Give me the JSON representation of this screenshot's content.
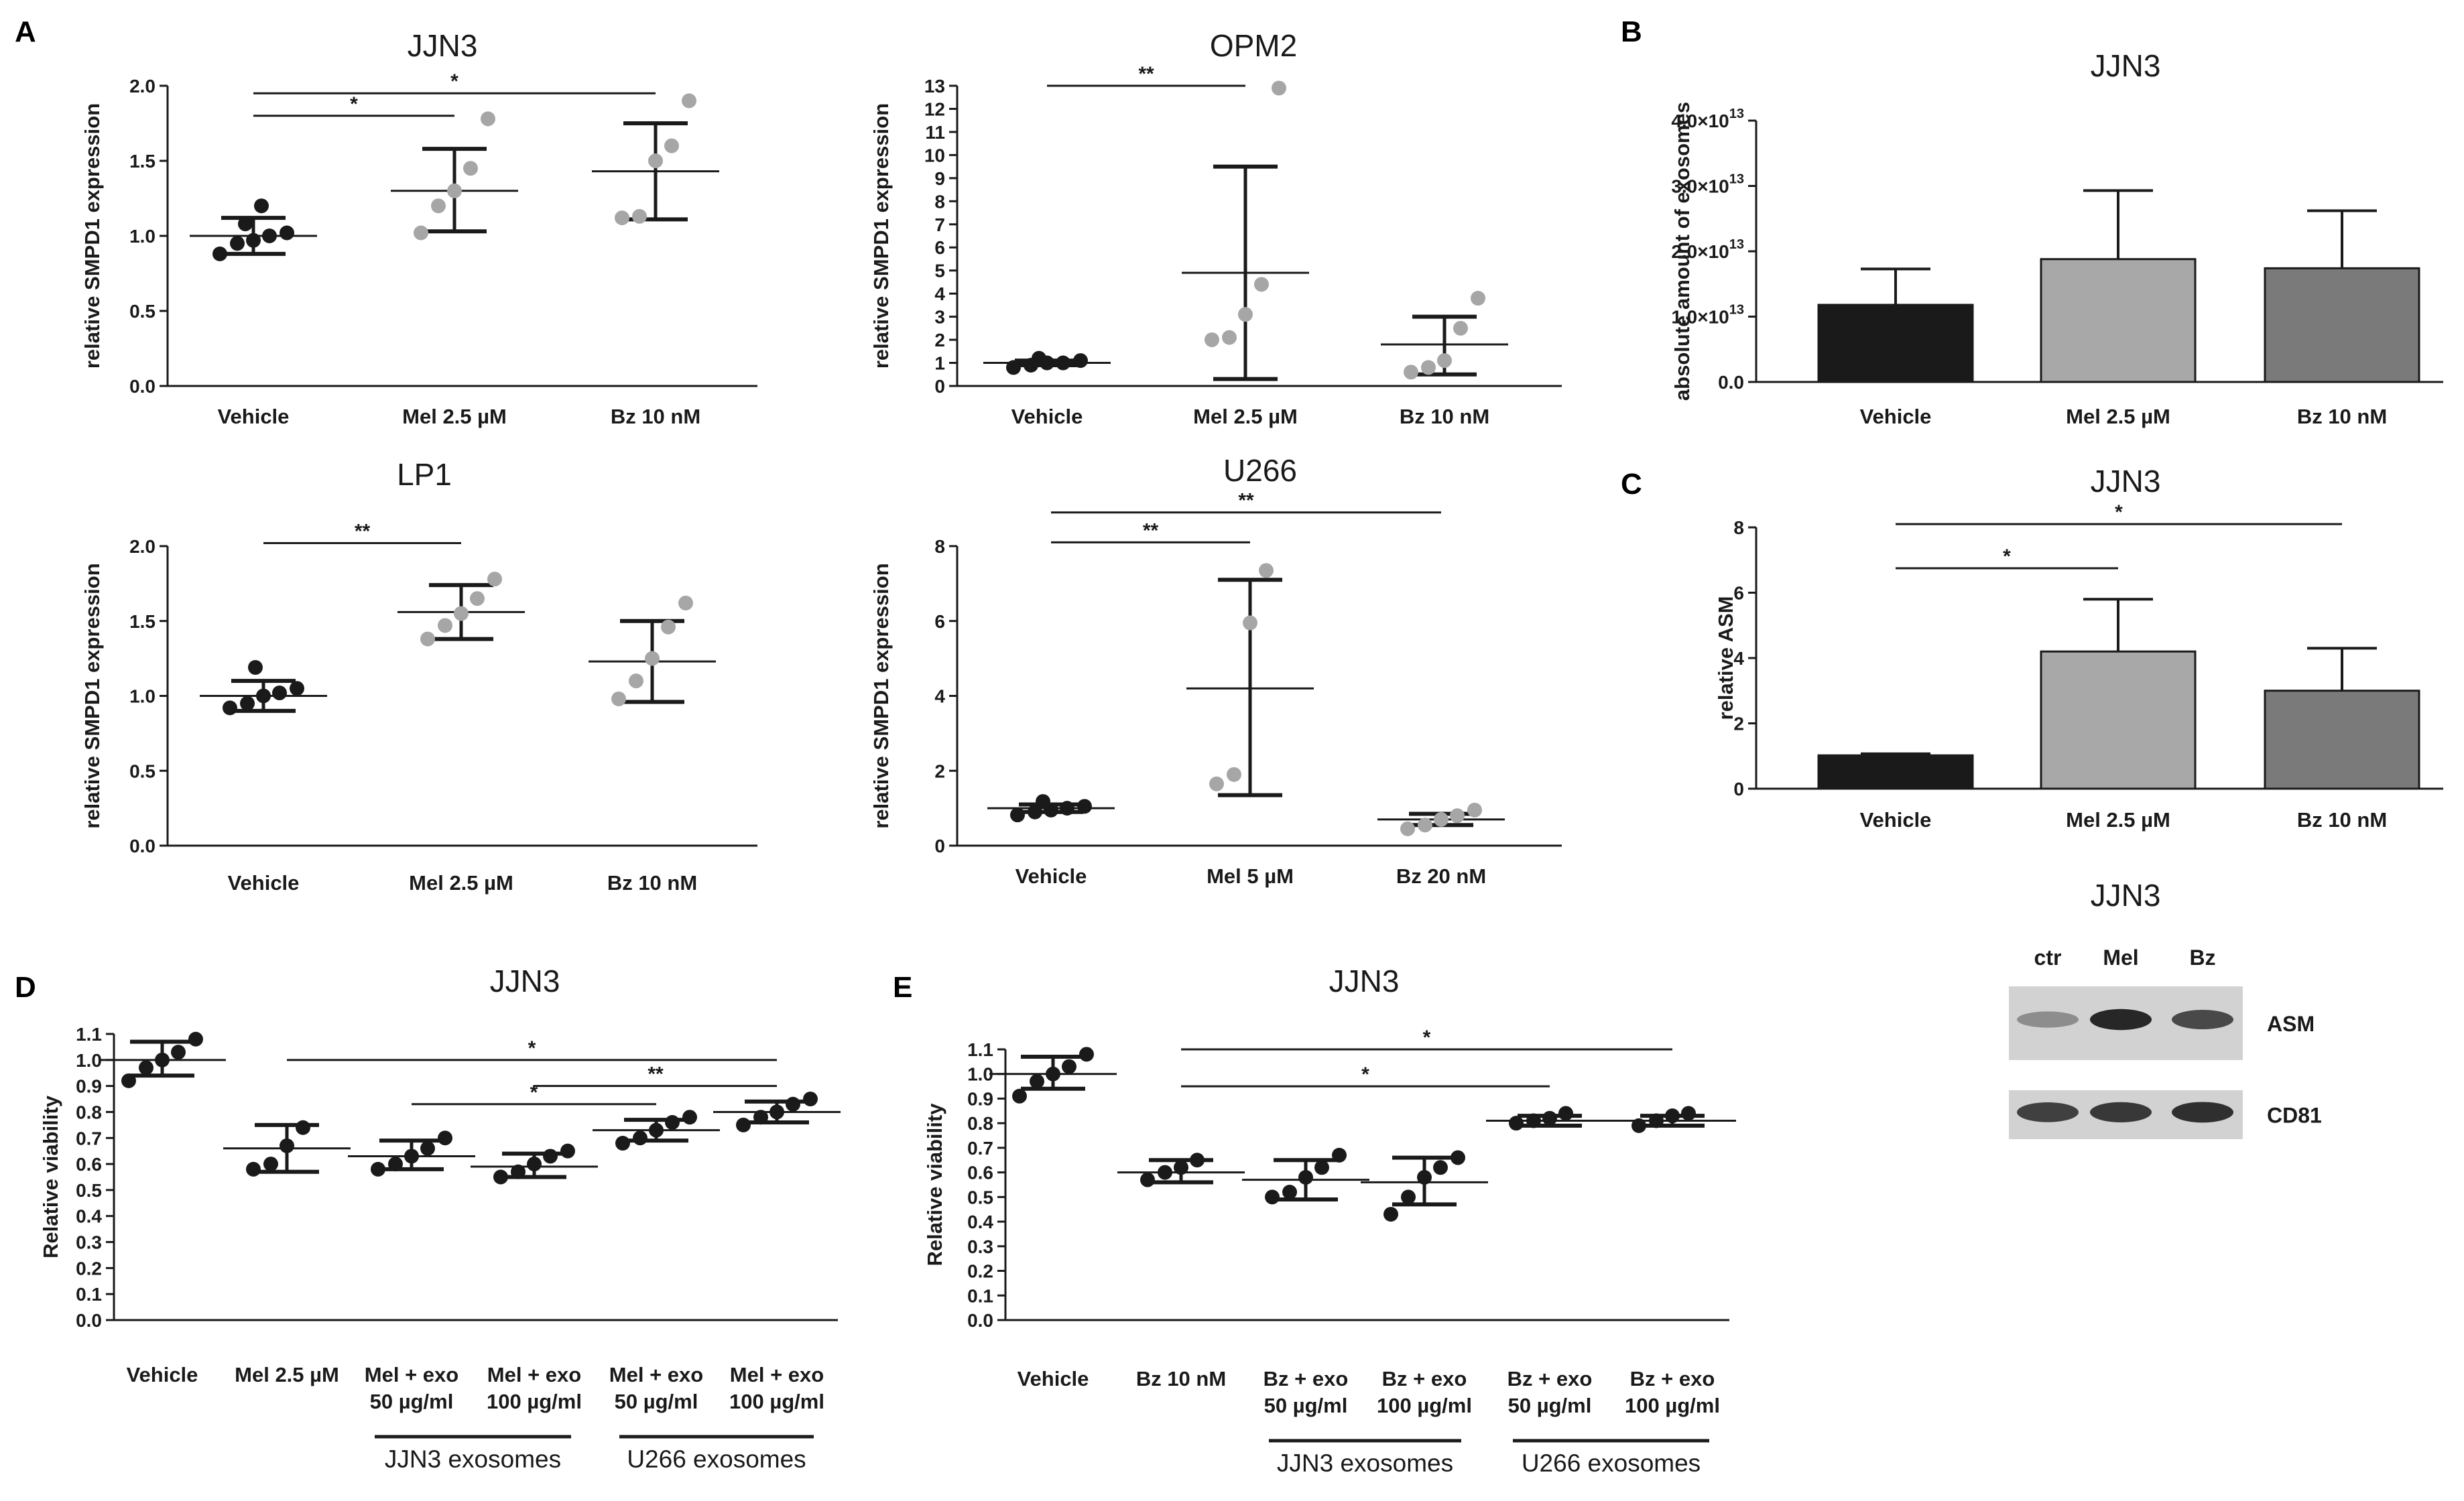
{
  "panel_letters": {
    "A": "A",
    "B": "B",
    "C": "C",
    "D": "D",
    "E": "E"
  },
  "colors": {
    "black": "#1a1a1a",
    "grey": "#a6a6a6",
    "bar_black": "#1a1a1a",
    "bar_light": "#a8a8a8",
    "bar_mid": "#7a7a7a",
    "axis": "#1a1a1a"
  },
  "chart_data": [
    {
      "id": "a_jjn3",
      "type": "scatter",
      "title": "JJN3",
      "ylabel": "relative SMPD1 expression",
      "ylim": [
        0,
        2.0
      ],
      "yticks": [
        "0.0",
        "0.5",
        "1.0",
        "1.5",
        "2.0"
      ],
      "ytick_values": [
        0,
        0.5,
        1.0,
        1.5,
        2.0
      ],
      "categories": [
        "Vehicle",
        "Mel 2.5 µM",
        "Bz 10 nM"
      ],
      "series": [
        {
          "name": "Vehicle",
          "color": "black",
          "points": [
            0.88,
            0.95,
            0.97,
            1.0,
            1.02,
            1.08,
            1.2
          ],
          "mean": 1.0,
          "sd_low": 0.88,
          "sd_high": 1.12
        },
        {
          "name": "Mel 2.5 µM",
          "color": "grey",
          "points": [
            1.02,
            1.2,
            1.3,
            1.45,
            1.78
          ],
          "mean": 1.3,
          "sd_low": 1.03,
          "sd_high": 1.58
        },
        {
          "name": "Bz 10 nM",
          "color": "grey",
          "points": [
            1.12,
            1.13,
            1.5,
            1.6,
            1.9
          ],
          "mean": 1.43,
          "sd_low": 1.11,
          "sd_high": 1.75
        }
      ],
      "significance": [
        {
          "from": 0,
          "to": 1,
          "label": "*",
          "y": 1.8
        },
        {
          "from": 0,
          "to": 2,
          "label": "*",
          "y": 1.95
        }
      ]
    },
    {
      "id": "a_opm2",
      "type": "scatter",
      "title": "OPM2",
      "ylabel": "relative SMPD1 expression",
      "ylim": [
        0,
        13
      ],
      "yticks": [
        "0",
        "1",
        "2",
        "3",
        "4",
        "5",
        "6",
        "7",
        "8",
        "9",
        "10",
        "11",
        "12",
        "13"
      ],
      "ytick_values": [
        0,
        1,
        2,
        3,
        4,
        5,
        6,
        7,
        8,
        9,
        10,
        11,
        12,
        13
      ],
      "categories": [
        "Vehicle",
        "Mel 2.5 µM",
        "Bz 10 nM"
      ],
      "series": [
        {
          "name": "Vehicle",
          "color": "black",
          "points": [
            0.8,
            0.9,
            1.0,
            1.0,
            1.1,
            1.2
          ],
          "mean": 1.0,
          "sd_low": 0.9,
          "sd_high": 1.1
        },
        {
          "name": "Mel 2.5 µM",
          "color": "grey",
          "points": [
            2.0,
            2.1,
            3.1,
            4.4,
            12.9
          ],
          "mean": 4.9,
          "sd_low": 0.3,
          "sd_high": 9.5
        },
        {
          "name": "Bz 10 nM",
          "color": "grey",
          "points": [
            0.6,
            0.8,
            1.1,
            2.5,
            3.8
          ],
          "mean": 1.8,
          "sd_low": 0.5,
          "sd_high": 3.0
        }
      ],
      "significance": [
        {
          "from": 0,
          "to": 1,
          "label": "**",
          "y": 13.0
        }
      ]
    },
    {
      "id": "a_lp1",
      "type": "scatter",
      "title": "LP1",
      "ylabel": "relative SMPD1 expression",
      "ylim": [
        0,
        2.0
      ],
      "yticks": [
        "0.0",
        "0.5",
        "1.0",
        "1.5",
        "2.0"
      ],
      "ytick_values": [
        0,
        0.5,
        1.0,
        1.5,
        2.0
      ],
      "categories": [
        "Vehicle",
        "Mel 2.5 µM",
        "Bz 10 nM"
      ],
      "series": [
        {
          "name": "Vehicle",
          "color": "black",
          "points": [
            0.92,
            0.95,
            1.0,
            1.02,
            1.05,
            1.19
          ],
          "mean": 1.0,
          "sd_low": 0.9,
          "sd_high": 1.1
        },
        {
          "name": "Mel 2.5 µM",
          "color": "grey",
          "points": [
            1.38,
            1.47,
            1.55,
            1.65,
            1.78
          ],
          "mean": 1.56,
          "sd_low": 1.38,
          "sd_high": 1.74
        },
        {
          "name": "Bz 10 nM",
          "color": "grey",
          "points": [
            0.98,
            1.1,
            1.25,
            1.46,
            1.62
          ],
          "mean": 1.23,
          "sd_low": 0.96,
          "sd_high": 1.5
        }
      ],
      "significance": [
        {
          "from": 0,
          "to": 1,
          "label": "**",
          "y": 2.02
        }
      ]
    },
    {
      "id": "a_u266",
      "type": "scatter",
      "title": "U266",
      "ylabel": "relative SMPD1 expression",
      "ylim": [
        0,
        8
      ],
      "yticks": [
        "0",
        "2",
        "4",
        "6",
        "8"
      ],
      "ytick_values": [
        0,
        2,
        4,
        6,
        8
      ],
      "categories": [
        "Vehicle",
        "Mel 5 µM",
        "Bz 20 nM"
      ],
      "series": [
        {
          "name": "Vehicle",
          "color": "black",
          "points": [
            0.82,
            0.9,
            0.95,
            1.0,
            1.05,
            1.18
          ],
          "mean": 1.0,
          "sd_low": 0.9,
          "sd_high": 1.1
        },
        {
          "name": "Mel 5 µM",
          "color": "grey",
          "points": [
            1.65,
            1.9,
            5.95,
            7.35
          ],
          "mean": 4.2,
          "sd_low": 1.35,
          "sd_high": 7.1
        },
        {
          "name": "Bz 20 nM",
          "color": "grey",
          "points": [
            0.45,
            0.55,
            0.7,
            0.8,
            0.95
          ],
          "mean": 0.7,
          "sd_low": 0.55,
          "sd_high": 0.85
        }
      ],
      "significance": [
        {
          "from": 0,
          "to": 1,
          "label": "**",
          "y": 8.1
        },
        {
          "from": 0,
          "to": 2,
          "label": "**",
          "y": 8.9
        }
      ]
    },
    {
      "id": "b_exosomes",
      "type": "bar",
      "title": "JJN3",
      "ylabel": "absolute amount of exosomes",
      "ylim": [
        0,
        4.0
      ],
      "yticks": [
        "0.0",
        "1.0×10",
        "2.0×10",
        "3.0×10",
        "4.0×10"
      ],
      "ytick_exp": "13",
      "ytick_values": [
        0,
        1.0,
        2.0,
        3.0,
        4.0
      ],
      "categories": [
        "Vehicle",
        "Mel 2.5 µM",
        "Bz 10 nM"
      ],
      "values": [
        1.18,
        1.88,
        1.74
      ],
      "errors": [
        0.55,
        1.05,
        0.88
      ],
      "bar_colors": [
        "bar_black",
        "bar_light",
        "bar_mid"
      ],
      "value_unit": "×10^13",
      "significance": []
    },
    {
      "id": "c_asm",
      "type": "bar",
      "title": "JJN3",
      "ylabel": "relative ASM",
      "ylim": [
        0,
        8
      ],
      "yticks": [
        "0",
        "2",
        "4",
        "6",
        "8"
      ],
      "ytick_values": [
        0,
        2,
        4,
        6,
        8
      ],
      "categories": [
        "Vehicle",
        "Mel 2.5 µM",
        "Bz 10 nM"
      ],
      "values": [
        1.02,
        4.2,
        3.0
      ],
      "errors": [
        0.05,
        1.6,
        1.3
      ],
      "bar_colors": [
        "bar_black",
        "bar_light",
        "bar_mid"
      ],
      "significance": [
        {
          "from": 0,
          "to": 1,
          "label": "*",
          "y": 6.75
        },
        {
          "from": 0,
          "to": 2,
          "label": "*",
          "y": 8.1
        }
      ]
    },
    {
      "id": "d_viability",
      "type": "scatter",
      "title": "JJN3",
      "ylabel": "Relative viability",
      "ylim": [
        0,
        1.1
      ],
      "yticks": [
        "0.0",
        "0.1",
        "0.2",
        "0.3",
        "0.4",
        "0.5",
        "0.6",
        "0.7",
        "0.8",
        "0.9",
        "1.0",
        "1.1"
      ],
      "ytick_values": [
        0,
        0.1,
        0.2,
        0.3,
        0.4,
        0.5,
        0.6,
        0.7,
        0.8,
        0.9,
        1.0,
        1.1
      ],
      "categories": [
        "Vehicle",
        "Mel 2.5 µM",
        "Mel + exo\n50 µg/ml",
        "Mel + exo\n100 µg/ml",
        "Mel + exo\n50 µg/ml",
        "Mel + exo\n100 µg/ml"
      ],
      "series": [
        {
          "name": "Vehicle",
          "color": "black",
          "points": [
            0.92,
            0.97,
            1.0,
            1.03,
            1.08
          ],
          "mean": 1.0,
          "sd_low": 0.94,
          "sd_high": 1.07
        },
        {
          "name": "Mel 2.5 µM",
          "color": "black",
          "points": [
            0.58,
            0.6,
            0.67,
            0.74
          ],
          "mean": 0.66,
          "sd_low": 0.57,
          "sd_high": 0.75
        },
        {
          "name": "Mel + exo 50 µg/ml (JJN3)",
          "color": "black",
          "points": [
            0.58,
            0.6,
            0.63,
            0.66,
            0.7
          ],
          "mean": 0.63,
          "sd_low": 0.58,
          "sd_high": 0.69
        },
        {
          "name": "Mel + exo 100 µg/ml (JJN3)",
          "color": "black",
          "points": [
            0.55,
            0.57,
            0.6,
            0.63,
            0.65
          ],
          "mean": 0.59,
          "sd_low": 0.55,
          "sd_high": 0.64
        },
        {
          "name": "Mel + exo 50 µg/ml (U266)",
          "color": "black",
          "points": [
            0.68,
            0.7,
            0.73,
            0.76,
            0.78
          ],
          "mean": 0.73,
          "sd_low": 0.69,
          "sd_high": 0.77
        },
        {
          "name": "Mel + exo 100 µg/ml (U266)",
          "color": "black",
          "points": [
            0.75,
            0.78,
            0.8,
            0.83,
            0.85
          ],
          "mean": 0.8,
          "sd_low": 0.76,
          "sd_high": 0.84
        }
      ],
      "significance": [
        {
          "from": 1,
          "to": 5,
          "label": "*",
          "y": 1.0
        },
        {
          "from": 3,
          "to": 5,
          "label": "**",
          "y": 0.9
        },
        {
          "from": 2,
          "to": 4,
          "label": "*",
          "y": 0.83
        }
      ],
      "groups": [
        {
          "label": "JJN3 exosomes",
          "from": 2,
          "to": 3
        },
        {
          "label": "U266 exosomes",
          "from": 4,
          "to": 5
        }
      ]
    },
    {
      "id": "e_viability",
      "type": "scatter",
      "title": "JJN3",
      "ylabel": "Relative viability",
      "ylim": [
        0,
        1.1
      ],
      "yticks": [
        "0.0",
        "0.1",
        "0.2",
        "0.3",
        "0.4",
        "0.5",
        "0.6",
        "0.7",
        "0.8",
        "0.9",
        "1.0",
        "1.1"
      ],
      "ytick_values": [
        0,
        0.1,
        0.2,
        0.3,
        0.4,
        0.5,
        0.6,
        0.7,
        0.8,
        0.9,
        1.0,
        1.1
      ],
      "categories": [
        "Vehicle",
        "Bz 10 nM",
        "Bz + exo\n50 µg/ml",
        "Bz + exo\n100 µg/ml",
        "Bz + exo\n50 µg/ml",
        "Bz + exo\n100 µg/ml"
      ],
      "series": [
        {
          "name": "Vehicle",
          "color": "black",
          "points": [
            0.91,
            0.97,
            1.0,
            1.03,
            1.08
          ],
          "mean": 1.0,
          "sd_low": 0.94,
          "sd_high": 1.07
        },
        {
          "name": "Bz 10 nM",
          "color": "black",
          "points": [
            0.57,
            0.6,
            0.62,
            0.65
          ],
          "mean": 0.6,
          "sd_low": 0.56,
          "sd_high": 0.65
        },
        {
          "name": "Bz + exo 50 µg/ml (JJN3)",
          "color": "black",
          "points": [
            0.5,
            0.52,
            0.58,
            0.62,
            0.67
          ],
          "mean": 0.57,
          "sd_low": 0.49,
          "sd_high": 0.65
        },
        {
          "name": "Bz + exo 100 µg/ml (JJN3)",
          "color": "black",
          "points": [
            0.43,
            0.5,
            0.58,
            0.62,
            0.66
          ],
          "mean": 0.56,
          "sd_low": 0.47,
          "sd_high": 0.66
        },
        {
          "name": "Bz + exo 50 µg/ml (U266)",
          "color": "black",
          "points": [
            0.8,
            0.81,
            0.82,
            0.84
          ],
          "mean": 0.81,
          "sd_low": 0.79,
          "sd_high": 0.83
        },
        {
          "name": "Bz + exo 100 µg/ml (U266)",
          "color": "black",
          "points": [
            0.79,
            0.81,
            0.83,
            0.84
          ],
          "mean": 0.81,
          "sd_low": 0.79,
          "sd_high": 0.83
        }
      ],
      "significance": [
        {
          "from": 1,
          "to": 5,
          "label": "*",
          "y": 1.1
        },
        {
          "from": 1,
          "to": 4,
          "label": "*",
          "y": 0.95
        }
      ],
      "groups": [
        {
          "label": "JJN3 exosomes",
          "from": 2,
          "to": 3
        },
        {
          "label": "U266 exosomes",
          "from": 4,
          "to": 5
        }
      ]
    }
  ],
  "western_blot": {
    "title": "JJN3",
    "lanes": [
      "ctr",
      "Mel",
      "Bz"
    ],
    "bands": [
      {
        "label": "ASM",
        "intensities": [
          0.35,
          0.95,
          0.75
        ]
      },
      {
        "label": "CD81",
        "intensities": [
          0.8,
          0.85,
          0.9
        ]
      }
    ]
  }
}
